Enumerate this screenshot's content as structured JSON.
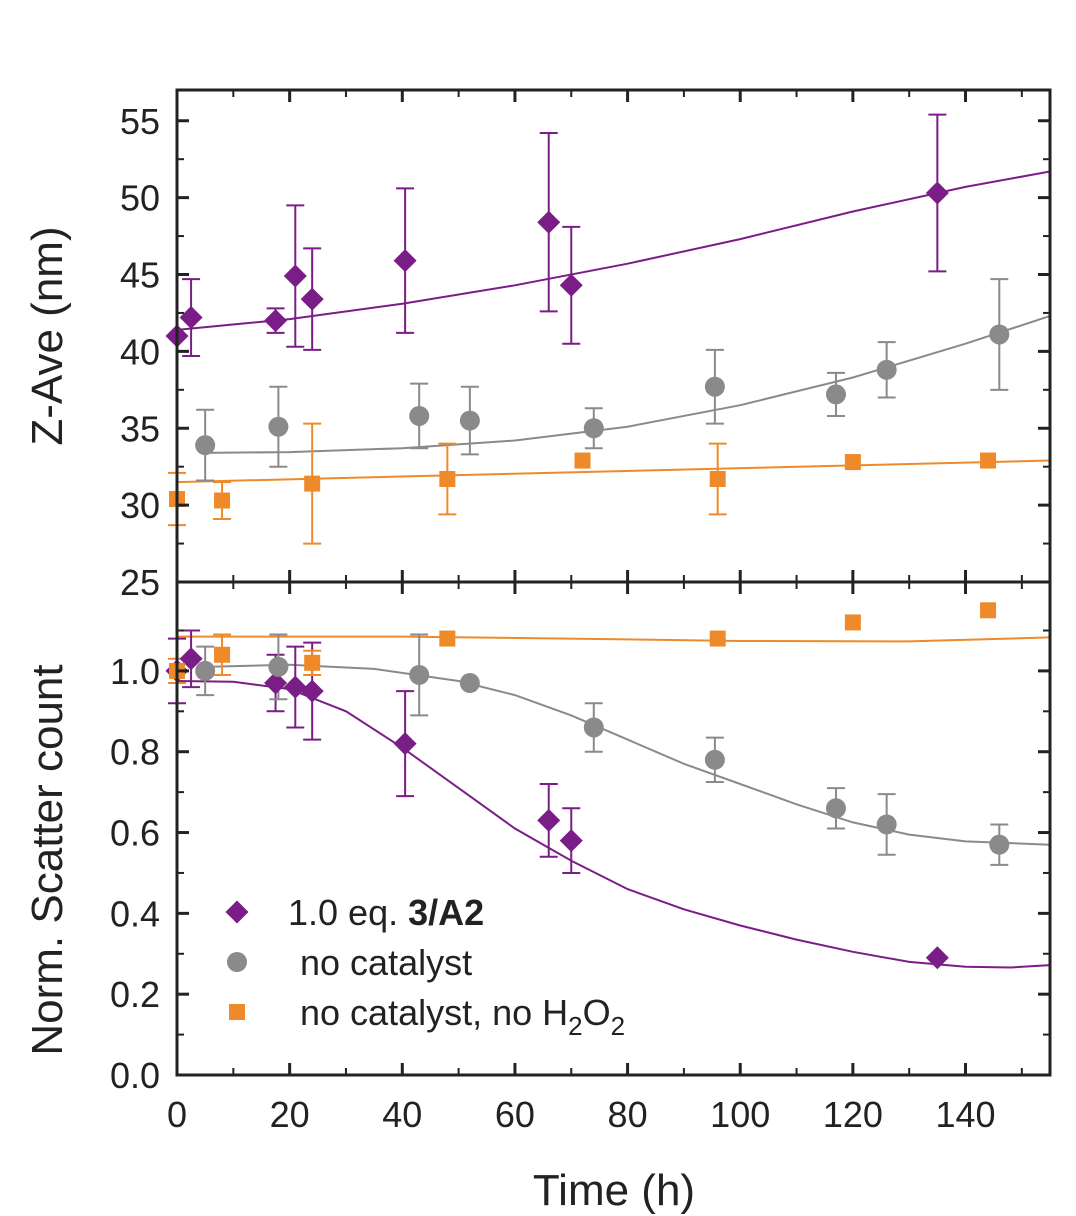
{
  "chart_data": [
    {
      "panel": "top",
      "type": "scatter",
      "ylabel": "Z-Ave (nm)",
      "xlim": [
        0,
        155
      ],
      "ylim": [
        25,
        57
      ],
      "y_ticks": [
        "25",
        "30",
        "35",
        "40",
        "45",
        "50",
        "55"
      ],
      "series": [
        {
          "name": "1.0 eq. 3/A2",
          "color": "#7b1d86",
          "marker": "diamond",
          "points": [
            {
              "x": 0,
              "y": 41,
              "err": 0
            },
            {
              "x": 2.5,
              "y": 42.2,
              "err": 2.5
            },
            {
              "x": 17.5,
              "y": 42,
              "err": 0.8
            },
            {
              "x": 21,
              "y": 44.9,
              "err": 4.6
            },
            {
              "x": 24,
              "y": 43.4,
              "err": 3.3
            },
            {
              "x": 40.5,
              "y": 45.9,
              "err": 4.7
            },
            {
              "x": 66,
              "y": 48.4,
              "err": 5.8
            },
            {
              "x": 70,
              "y": 44.3,
              "err": 3.8
            },
            {
              "x": 135,
              "y": 50.3,
              "err": 5.1
            }
          ],
          "fit": [
            [
              0,
              41.4
            ],
            [
              20,
              42.1
            ],
            [
              40,
              43.1
            ],
            [
              60,
              44.3
            ],
            [
              80,
              45.7
            ],
            [
              100,
              47.3
            ],
            [
              120,
              49.1
            ],
            [
              140,
              50.7
            ],
            [
              155,
              51.7
            ]
          ]
        },
        {
          "name": "no catalyst",
          "color": "#8a8a8a",
          "marker": "circle",
          "points": [
            {
              "x": 5,
              "y": 33.9,
              "err": 2.3
            },
            {
              "x": 18,
              "y": 35.1,
              "err": 2.6
            },
            {
              "x": 43,
              "y": 35.8,
              "err": 2.1
            },
            {
              "x": 52,
              "y": 35.5,
              "err": 2.2
            },
            {
              "x": 74,
              "y": 35,
              "err": 1.3
            },
            {
              "x": 95.5,
              "y": 37.7,
              "err": 2.4
            },
            {
              "x": 117,
              "y": 37.2,
              "err": 1.4
            },
            {
              "x": 126,
              "y": 38.8,
              "err": 1.8
            },
            {
              "x": 146,
              "y": 41.1,
              "err": 3.6
            }
          ],
          "fit": [
            [
              5,
              33.4
            ],
            [
              20,
              33.45
            ],
            [
              40,
              33.7
            ],
            [
              60,
              34.2
            ],
            [
              80,
              35.1
            ],
            [
              100,
              36.5
            ],
            [
              120,
              38.3
            ],
            [
              140,
              40.5
            ],
            [
              155,
              42.3
            ]
          ]
        },
        {
          "name": "no catalyst, no H2O2",
          "color": "#ef8a2a",
          "marker": "square",
          "points": [
            {
              "x": 0,
              "y": 30.4,
              "err": 1.7
            },
            {
              "x": 8,
              "y": 30.3,
              "err": 1.2
            },
            {
              "x": 24,
              "y": 31.4,
              "err": 3.9
            },
            {
              "x": 48,
              "y": 31.7,
              "err": 2.3
            },
            {
              "x": 72,
              "y": 32.9,
              "err": 0
            },
            {
              "x": 96,
              "y": 31.7,
              "err": 2.3
            },
            {
              "x": 120,
              "y": 32.8,
              "err": 0
            },
            {
              "x": 144,
              "y": 32.9,
              "err": 0
            }
          ],
          "fit": [
            [
              0,
              31.5
            ],
            [
              155,
              32.9
            ]
          ]
        }
      ]
    },
    {
      "panel": "bottom",
      "type": "scatter",
      "title": "",
      "xlabel": "Time (h)",
      "ylabel": "Norm. Scatter count",
      "xlim": [
        0,
        155
      ],
      "ylim": [
        0,
        1.22
      ],
      "x_ticks": [
        "0",
        "20",
        "40",
        "60",
        "80",
        "100",
        "120",
        "140"
      ],
      "y_ticks": [
        "0.0",
        "0.2",
        "0.4",
        "0.6",
        "0.8",
        "1.0"
      ],
      "series": [
        {
          "name": "1.0 eq. 3/A2",
          "color": "#7b1d86",
          "marker": "diamond",
          "points": [
            {
              "x": 0,
              "y": 1.0,
              "err": 0.08
            },
            {
              "x": 2.5,
              "y": 1.03,
              "err": 0.07
            },
            {
              "x": 17.5,
              "y": 0.97,
              "err": 0.07
            },
            {
              "x": 21,
              "y": 0.96,
              "err": 0.1
            },
            {
              "x": 24,
              "y": 0.95,
              "err": 0.12
            },
            {
              "x": 40.5,
              "y": 0.82,
              "err": 0.13
            },
            {
              "x": 66,
              "y": 0.63,
              "err": 0.09
            },
            {
              "x": 70,
              "y": 0.58,
              "err": 0.08
            },
            {
              "x": 135,
              "y": 0.29,
              "err": 0
            }
          ],
          "fit": [
            [
              0,
              0.975
            ],
            [
              10,
              0.973
            ],
            [
              20,
              0.955
            ],
            [
              30,
              0.9
            ],
            [
              40,
              0.81
            ],
            [
              50,
              0.71
            ],
            [
              60,
              0.61
            ],
            [
              70,
              0.53
            ],
            [
              80,
              0.46
            ],
            [
              90,
              0.41
            ],
            [
              100,
              0.37
            ],
            [
              110,
              0.335
            ],
            [
              120,
              0.305
            ],
            [
              130,
              0.28
            ],
            [
              140,
              0.268
            ],
            [
              148,
              0.266
            ],
            [
              155,
              0.272
            ]
          ]
        },
        {
          "name": "no catalyst",
          "color": "#8a8a8a",
          "marker": "circle",
          "points": [
            {
              "x": 5,
              "y": 1.0,
              "err": 0.06
            },
            {
              "x": 18,
              "y": 1.01,
              "err": 0.08
            },
            {
              "x": 43,
              "y": 0.99,
              "err": 0.1
            },
            {
              "x": 52,
              "y": 0.97,
              "err": 0
            },
            {
              "x": 74,
              "y": 0.86,
              "err": 0.06
            },
            {
              "x": 95.5,
              "y": 0.78,
              "err": 0.055
            },
            {
              "x": 117,
              "y": 0.66,
              "err": 0.05
            },
            {
              "x": 126,
              "y": 0.62,
              "err": 0.075
            },
            {
              "x": 146,
              "y": 0.57,
              "err": 0.05
            }
          ],
          "fit": [
            [
              5,
              1.01
            ],
            [
              20,
              1.015
            ],
            [
              35,
              1.005
            ],
            [
              50,
              0.975
            ],
            [
              60,
              0.94
            ],
            [
              70,
              0.89
            ],
            [
              80,
              0.83
            ],
            [
              90,
              0.77
            ],
            [
              100,
              0.72
            ],
            [
              110,
              0.67
            ],
            [
              120,
              0.625
            ],
            [
              130,
              0.595
            ],
            [
              140,
              0.578
            ],
            [
              155,
              0.57
            ]
          ]
        },
        {
          "name": "no catalyst, no H2O2",
          "color": "#ef8a2a",
          "marker": "square",
          "points": [
            {
              "x": 0,
              "y": 1.0,
              "err": 0.03
            },
            {
              "x": 8,
              "y": 1.04,
              "err": 0.05
            },
            {
              "x": 24,
              "y": 1.02,
              "err": 0.03
            },
            {
              "x": 48,
              "y": 1.08,
              "err": 0
            },
            {
              "x": 96,
              "y": 1.08,
              "err": 0
            },
            {
              "x": 120,
              "y": 1.12,
              "err": 0
            },
            {
              "x": 144,
              "y": 1.15,
              "err": 0
            }
          ],
          "fit": [
            [
              0,
              1.085
            ],
            [
              40,
              1.085
            ],
            [
              80,
              1.078
            ],
            [
              100,
              1.074
            ],
            [
              130,
              1.073
            ],
            [
              155,
              1.083
            ]
          ]
        }
      ]
    }
  ],
  "legend": {
    "items": [
      {
        "prefix": "1.0 eq. ",
        "bold": "3/A2",
        "color": "#7b1d86",
        "marker": "diamond"
      },
      {
        "text": "no catalyst",
        "color": "#8a8a8a",
        "marker": "circle"
      },
      {
        "text_a": "no catalyst, no H",
        "sub1": "2",
        "text_b": "O",
        "sub2": "2",
        "color": "#ef8a2a",
        "marker": "square"
      }
    ]
  }
}
